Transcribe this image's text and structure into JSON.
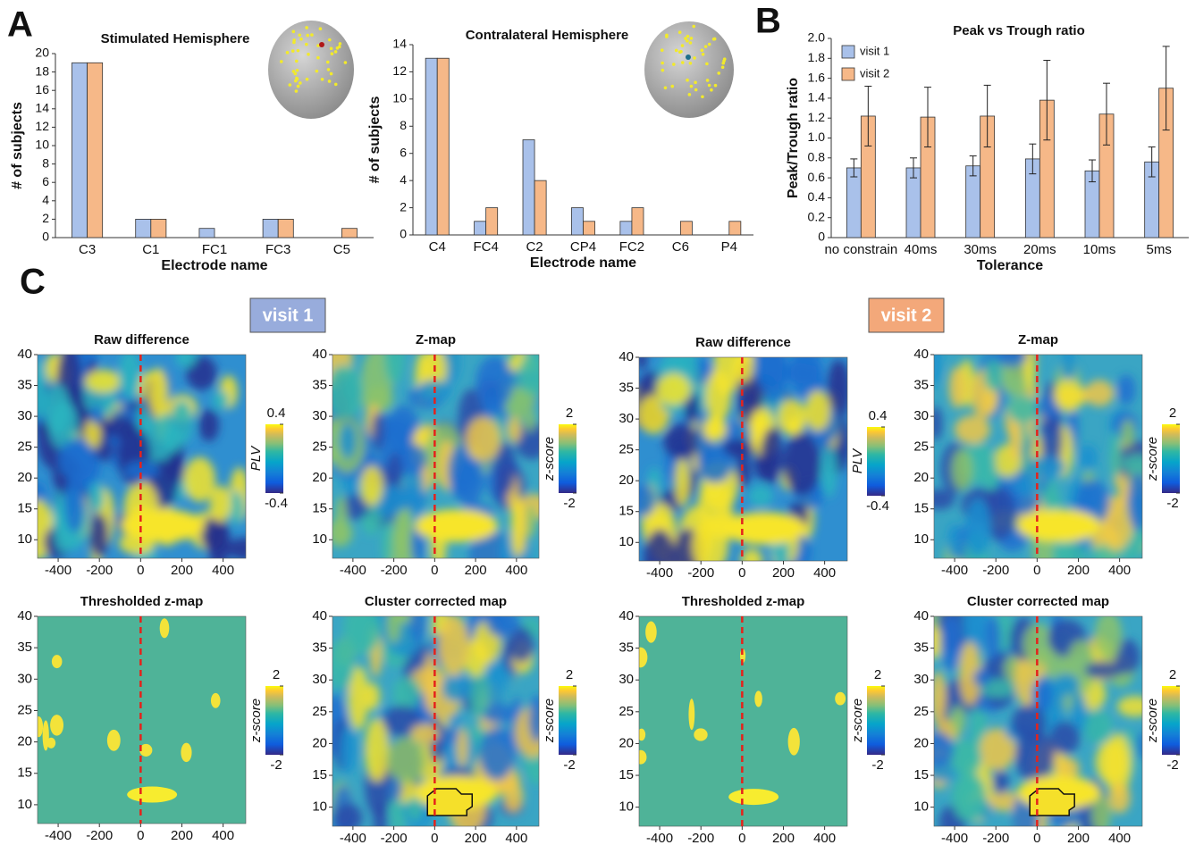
{
  "panel_labels": [
    "A",
    "B",
    "C"
  ],
  "group_labels": [
    "visit 1",
    "visit 2"
  ],
  "chart_data": [
    {
      "type": "bar",
      "title": "Stimulated Hemisphere",
      "xlabel": "Electrode name",
      "ylabel": "# of subjects",
      "categories": [
        "C3",
        "C1",
        "FC1",
        "FC3",
        "C5"
      ],
      "series": [
        {
          "color": "#a9c1ea",
          "values": [
            19,
            2,
            1,
            2,
            0
          ]
        },
        {
          "color": "#f6b888",
          "values": [
            19,
            2,
            0,
            2,
            1
          ]
        }
      ],
      "ylim": [
        0,
        20
      ],
      "yticks": [
        0,
        2,
        4,
        6,
        8,
        10,
        12,
        14,
        16,
        18,
        20
      ]
    },
    {
      "type": "bar",
      "title": "Contralateral Hemisphere",
      "xlabel": "Electrode name",
      "ylabel": "# of subjects",
      "categories": [
        "C4",
        "FC4",
        "C2",
        "CP4",
        "FC2",
        "C6",
        "P4"
      ],
      "series": [
        {
          "color": "#a9c1ea",
          "values": [
            13,
            1,
            7,
            2,
            1,
            0,
            0
          ]
        },
        {
          "color": "#f6b888",
          "values": [
            13,
            2,
            4,
            1,
            2,
            1,
            1
          ]
        }
      ],
      "ylim": [
        0,
        14
      ],
      "yticks": [
        0,
        2,
        4,
        6,
        8,
        10,
        12,
        14
      ]
    },
    {
      "type": "bar",
      "title": "Peak vs Trough ratio",
      "xlabel": "Tolerance",
      "ylabel": "Peak/Trough ratio",
      "categories": [
        "no constrain",
        "40ms",
        "30ms",
        "20ms",
        "10ms",
        "5ms"
      ],
      "series": [
        {
          "name": "visit 1",
          "color": "#a9c1ea",
          "values": [
            0.7,
            0.7,
            0.72,
            0.79,
            0.67,
            0.76
          ],
          "errors": [
            0.09,
            0.1,
            0.1,
            0.15,
            0.11,
            0.15
          ]
        },
        {
          "name": "visit 2",
          "color": "#f6b888",
          "values": [
            1.22,
            1.21,
            1.22,
            1.38,
            1.24,
            1.5
          ],
          "errors": [
            0.3,
            0.3,
            0.31,
            0.4,
            0.31,
            0.42
          ]
        }
      ],
      "ylim": [
        0,
        2
      ],
      "yticks": [
        0,
        0.2,
        0.4,
        0.6,
        0.8,
        {
          "value": 1,
          "label": "1.0"
        },
        1.2,
        1.4,
        1.6,
        1.8,
        {
          "value": 2,
          "label": "2.0"
        }
      ],
      "legend": "upper left"
    },
    {
      "type": "heatmap",
      "title": "Raw difference",
      "xlim": [
        -500,
        510
      ],
      "ylim": [
        7,
        40
      ],
      "xticks": [
        -400,
        -200,
        0,
        200,
        400
      ],
      "yticks": [
        10,
        15,
        20,
        25,
        30,
        35,
        40
      ],
      "clim": [
        -0.4,
        0.4
      ],
      "cticks": [
        -0.4,
        0.4
      ],
      "clabel": "PLV"
    },
    {
      "type": "heatmap",
      "title": "Z-map",
      "xlim": [
        -500,
        510
      ],
      "ylim": [
        7,
        40
      ],
      "xticks": [
        -400,
        -200,
        0,
        200,
        400
      ],
      "yticks": [
        10,
        15,
        20,
        25,
        30,
        35,
        40
      ],
      "clim": [
        -2,
        2
      ],
      "cticks": [
        -2,
        2
      ],
      "clabel": "z-score"
    },
    {
      "type": "heatmap",
      "title": "Raw difference",
      "xlim": [
        -500,
        510
      ],
      "ylim": [
        7,
        40
      ],
      "xticks": [
        -400,
        -200,
        0,
        200,
        400
      ],
      "yticks": [
        10,
        15,
        20,
        25,
        30,
        35,
        40
      ],
      "clim": [
        -0.4,
        0.4
      ],
      "cticks": [
        -0.4,
        0.4
      ],
      "clabel": "PLV"
    },
    {
      "type": "heatmap",
      "title": "Z-map",
      "xlim": [
        -500,
        510
      ],
      "ylim": [
        7,
        40
      ],
      "xticks": [
        -400,
        -200,
        0,
        200,
        400
      ],
      "yticks": [
        10,
        15,
        20,
        25,
        30,
        35,
        40
      ],
      "clim": [
        -2,
        2
      ],
      "cticks": [
        -2,
        2
      ],
      "clabel": "z-score"
    },
    {
      "type": "heatmap",
      "title": "Thresholded z-map",
      "xlim": [
        -500,
        510
      ],
      "ylim": [
        7,
        40
      ],
      "xticks": [
        -400,
        -200,
        0,
        200,
        400
      ],
      "yticks": [
        10,
        15,
        20,
        25,
        30,
        35,
        40
      ],
      "clim": [
        -2,
        2
      ],
      "cticks": [
        -2,
        2
      ],
      "clabel": "z-score"
    },
    {
      "type": "heatmap",
      "title": "Cluster corrected map",
      "xlim": [
        -500,
        510
      ],
      "ylim": [
        7,
        40
      ],
      "xticks": [
        -400,
        -200,
        0,
        200,
        400
      ],
      "yticks": [
        10,
        15,
        20,
        25,
        30,
        35,
        40
      ],
      "clim": [
        -2,
        2
      ],
      "cticks": [
        -2,
        2
      ],
      "clabel": "z-score"
    },
    {
      "type": "heatmap",
      "title": "Thresholded z-map",
      "xlim": [
        -500,
        510
      ],
      "ylim": [
        7,
        40
      ],
      "xticks": [
        -400,
        -200,
        0,
        200,
        400
      ],
      "yticks": [
        10,
        15,
        20,
        25,
        30,
        35,
        40
      ],
      "clim": [
        -2,
        2
      ],
      "cticks": [
        -2,
        2
      ],
      "clabel": "z-score"
    },
    {
      "type": "heatmap",
      "title": "Cluster corrected map",
      "xlim": [
        -500,
        510
      ],
      "ylim": [
        7,
        40
      ],
      "xticks": [
        -400,
        -200,
        0,
        200,
        400
      ],
      "yticks": [
        10,
        15,
        20,
        25,
        30,
        35,
        40
      ],
      "clim": [
        -2,
        2
      ],
      "cticks": [
        -2,
        2
      ],
      "clabel": "z-score"
    }
  ]
}
